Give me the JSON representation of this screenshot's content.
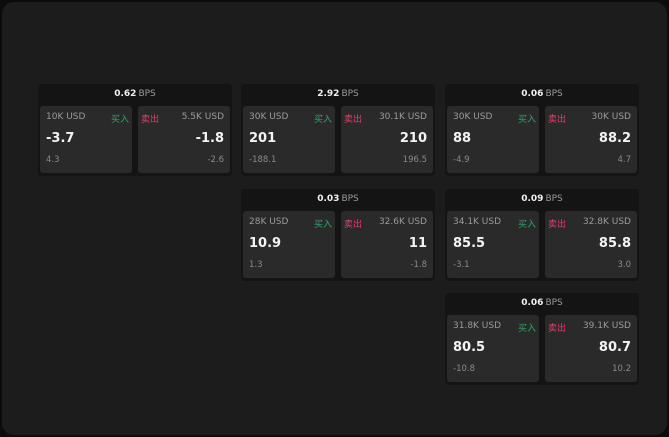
{
  "colors": {
    "buy": "#2fa86a",
    "sell": "#e0406a"
  },
  "labels": {
    "buy": "买入",
    "sell": "卖出",
    "unit": "BPS"
  },
  "cards": [
    {
      "col": 0,
      "row": 0,
      "spread": "0.62",
      "buy": {
        "size": "10K USD",
        "price": "-3.7",
        "change": "4.3"
      },
      "sell": {
        "size": "5.5K USD",
        "price": "-1.8",
        "change": "-2.6"
      }
    },
    {
      "col": 1,
      "row": 0,
      "spread": "2.92",
      "buy": {
        "size": "30K USD",
        "price": "201",
        "change": "-188.1"
      },
      "sell": {
        "size": "30.1K USD",
        "price": "210",
        "change": "196.5"
      }
    },
    {
      "col": 2,
      "row": 0,
      "spread": "0.06",
      "buy": {
        "size": "30K USD",
        "price": "88",
        "change": "-4.9"
      },
      "sell": {
        "size": "30K USD",
        "price": "88.2",
        "change": "4.7"
      }
    },
    {
      "col": 1,
      "row": 1,
      "spread": "0.03",
      "buy": {
        "size": "28K USD",
        "price": "10.9",
        "change": "1.3"
      },
      "sell": {
        "size": "32.6K USD",
        "price": "11",
        "change": "-1.8"
      }
    },
    {
      "col": 2,
      "row": 1,
      "spread": "0.09",
      "buy": {
        "size": "34.1K USD",
        "price": "85.5",
        "change": "-3.1"
      },
      "sell": {
        "size": "32.8K USD",
        "price": "85.8",
        "change": "3.0"
      }
    },
    {
      "col": 2,
      "row": 2,
      "spread": "0.06",
      "buy": {
        "size": "31.8K USD",
        "price": "80.5",
        "change": "-10.8"
      },
      "sell": {
        "size": "39.1K USD",
        "price": "80.7",
        "change": "10.2"
      }
    }
  ]
}
